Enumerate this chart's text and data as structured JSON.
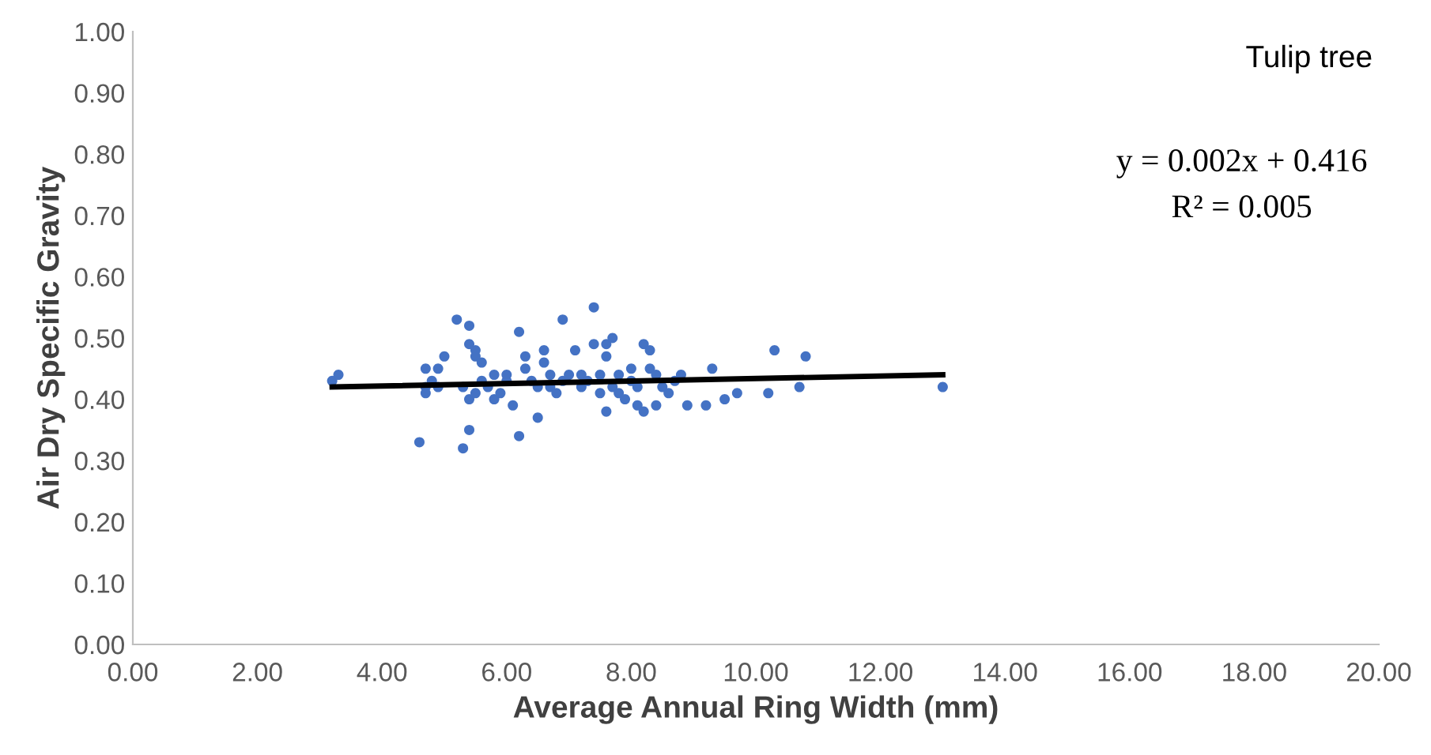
{
  "chart_data": {
    "type": "scatter",
    "xlabel": "Average Annual Ring Width (mm)",
    "ylabel": "Air Dry Specific Gravity",
    "annotations": [
      "Tulip tree",
      "y = 0.002x + 0.416",
      "R² = 0.005"
    ],
    "grid": false,
    "xlim": [
      0,
      20
    ],
    "ylim": [
      0,
      1
    ],
    "xticks": [
      {
        "value": 0,
        "label": "0.00"
      },
      {
        "value": 2,
        "label": "2.00"
      },
      {
        "value": 4,
        "label": "4.00"
      },
      {
        "value": 6,
        "label": "6.00"
      },
      {
        "value": 8,
        "label": "8.00"
      },
      {
        "value": 10,
        "label": "10.00"
      },
      {
        "value": 12,
        "label": "12.00"
      },
      {
        "value": 14,
        "label": "14.00"
      },
      {
        "value": 16,
        "label": "16.00"
      },
      {
        "value": 18,
        "label": "18.00"
      },
      {
        "value": 20,
        "label": "20.00"
      }
    ],
    "yticks": [
      {
        "value": 0,
        "label": "0.00"
      },
      {
        "value": 0.1,
        "label": "0.10"
      },
      {
        "value": 0.2,
        "label": "0.20"
      },
      {
        "value": 0.3,
        "label": "0.30"
      },
      {
        "value": 0.4,
        "label": "0.40"
      },
      {
        "value": 0.5,
        "label": "0.50"
      },
      {
        "value": 0.6,
        "label": "0.60"
      },
      {
        "value": 0.7,
        "label": "0.70"
      },
      {
        "value": 0.8,
        "label": "0.80"
      },
      {
        "value": 0.9,
        "label": "0.90"
      },
      {
        "value": 1.0,
        "label": "1.00"
      }
    ],
    "series": [
      {
        "marker": "circle",
        "color": "#4472c4",
        "x": [
          3.2,
          3.3,
          4.6,
          4.7,
          4.7,
          4.7,
          4.8,
          4.9,
          5.0,
          4.9,
          5.2,
          5.3,
          5.4,
          5.4,
          5.4,
          5.5,
          5.5,
          5.6,
          5.4,
          5.5,
          5.3,
          5.6,
          5.7,
          5.8,
          5.8,
          6.0,
          6.0,
          5.9,
          6.1,
          6.2,
          6.2,
          6.3,
          6.3,
          6.4,
          6.5,
          6.5,
          6.6,
          6.6,
          6.7,
          6.7,
          6.8,
          6.9,
          6.9,
          7.0,
          7.1,
          7.2,
          7.2,
          7.3,
          7.4,
          7.4,
          7.5,
          7.5,
          7.6,
          7.6,
          7.6,
          7.7,
          7.7,
          7.8,
          7.8,
          7.9,
          8.0,
          8.0,
          8.1,
          8.1,
          8.2,
          8.2,
          8.3,
          8.3,
          8.4,
          8.4,
          8.5,
          8.6,
          8.7,
          8.8,
          8.9,
          9.2,
          9.3,
          9.5,
          9.7,
          10.2,
          10.3,
          10.7,
          10.8,
          13.0
        ],
        "values": [
          0.43,
          0.44,
          0.33,
          0.42,
          0.45,
          0.41,
          0.43,
          0.42,
          0.47,
          0.45,
          0.53,
          0.32,
          0.35,
          0.52,
          0.49,
          0.48,
          0.47,
          0.46,
          0.4,
          0.41,
          0.42,
          0.43,
          0.42,
          0.44,
          0.4,
          0.43,
          0.44,
          0.41,
          0.39,
          0.34,
          0.51,
          0.47,
          0.45,
          0.43,
          0.42,
          0.37,
          0.46,
          0.48,
          0.44,
          0.42,
          0.41,
          0.53,
          0.43,
          0.44,
          0.48,
          0.42,
          0.44,
          0.43,
          0.55,
          0.49,
          0.44,
          0.41,
          0.47,
          0.49,
          0.38,
          0.5,
          0.42,
          0.44,
          0.41,
          0.4,
          0.45,
          0.43,
          0.42,
          0.39,
          0.38,
          0.49,
          0.48,
          0.45,
          0.39,
          0.44,
          0.42,
          0.41,
          0.43,
          0.44,
          0.39,
          0.39,
          0.45,
          0.4,
          0.41,
          0.41,
          0.48,
          0.42,
          0.47,
          0.42
        ]
      },
      {
        "type": "line",
        "color": "#000000",
        "x": [
          3.2,
          13.0
        ],
        "values": [
          0.42,
          0.44
        ]
      }
    ]
  }
}
